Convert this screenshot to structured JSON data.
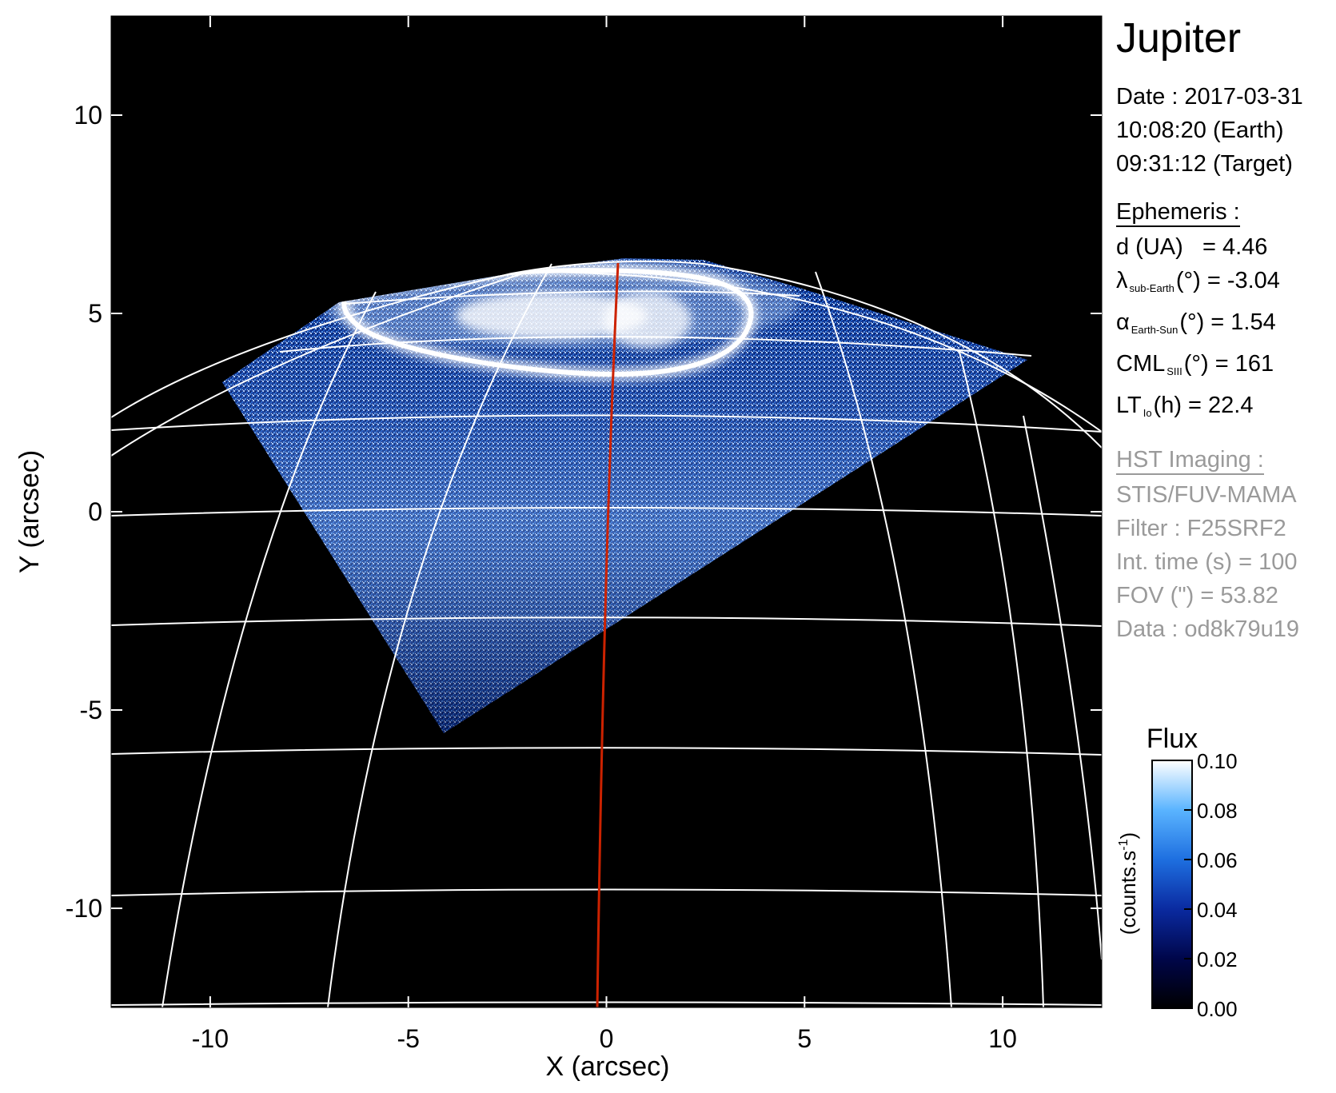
{
  "chart_data": {
    "type": "heatmap",
    "planet": "Jupiter",
    "xlabel": "X (arcsec)",
    "ylabel": "Y (arcsec)",
    "xlim": [
      -12.5,
      12.5
    ],
    "ylim": [
      -12.5,
      12.5
    ],
    "xticks": [
      -10,
      -5,
      0,
      5,
      10
    ],
    "yticks": [
      10,
      5,
      0,
      -5,
      -10
    ],
    "central_meridian_color": "#cc2200",
    "grid_color": "#ffffff",
    "background_color": "#000000",
    "colorbar": {
      "title": "Flux",
      "unit_label": "(counts.s",
      "unit_sup": "-1",
      "unit_close": ")",
      "min": 0.0,
      "max": 0.1,
      "ticks": [
        "0.00",
        "0.02",
        "0.04",
        "0.06",
        "0.08",
        "0.10"
      ],
      "colors": [
        "#000000",
        "#00064a",
        "#0a2aa0",
        "#1e6fe0",
        "#5ab4ff",
        "#ffffff"
      ]
    }
  },
  "info": {
    "date_line": "Date : 2017-03-31",
    "earth_time": "10:08:20 (Earth)",
    "target_time": "09:31:12 (Target)",
    "ephemeris_header": "Ephemeris :",
    "d_label": "d (UA)",
    "d_value": "= 4.46",
    "lambda_symbol": "λ",
    "lambda_sub": "sub-Earth",
    "lambda_value": "(°) = -3.04",
    "alpha_symbol": "α",
    "alpha_sub": "Earth-Sun",
    "alpha_value": "(°) = 1.54",
    "cml_label": "CML",
    "cml_sub": "SIII",
    "cml_value": "(°) = 161",
    "lt_label": "LT",
    "lt_sub": "Io",
    "lt_value": "(h) = 22.4",
    "hst_header": "HST Imaging :",
    "instrument": "STIS/FUV-MAMA",
    "filter": "Filter : F25SRF2",
    "int_time": "Int. time (s) = 100",
    "fov": "FOV (\") = 53.82",
    "data_id": "Data : od8k79u19"
  }
}
